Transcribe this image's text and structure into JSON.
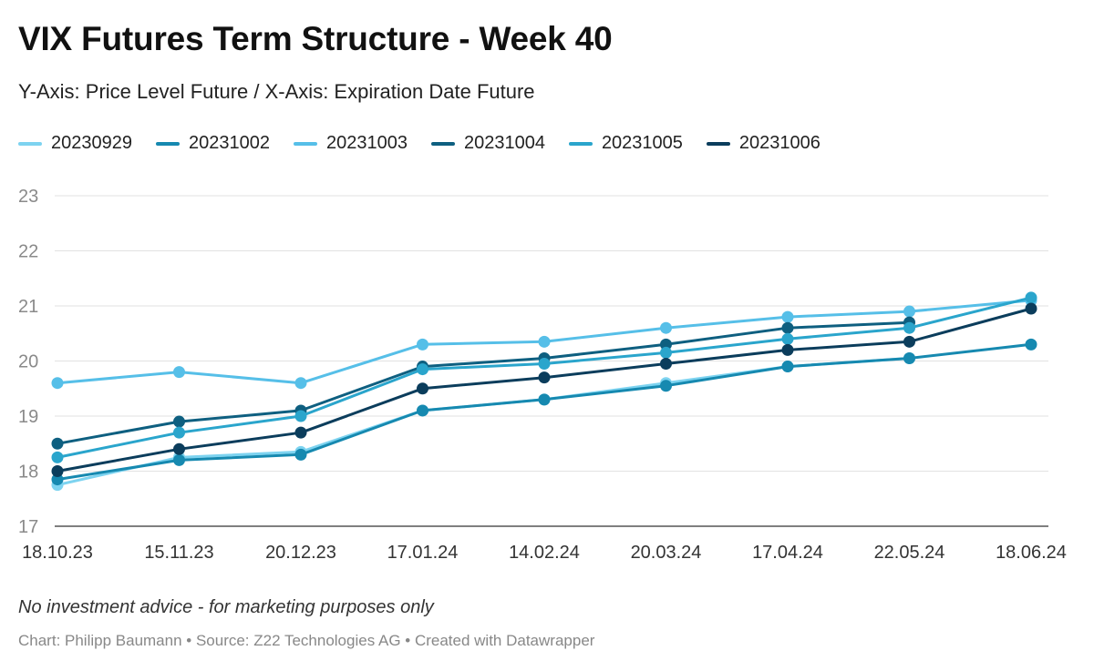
{
  "header": {
    "title": "VIX Futures Term Structure - Week 40",
    "subtitle": "Y-Axis: Price Level Future / X-Axis: Expiration Date Future"
  },
  "footer": {
    "note": "No investment advice - for marketing purposes only",
    "credit": "Chart: Philipp Baumann • Source: Z22 Technologies AG • Created with Datawrapper"
  },
  "chart_data": {
    "type": "line",
    "title": "VIX Futures Term Structure - Week 40",
    "subtitle": "Y-Axis: Price Level Future / X-Axis: Expiration Date Future",
    "xlabel": "",
    "ylabel": "",
    "categories": [
      "18.10.23",
      "15.11.23",
      "20.12.23",
      "17.01.24",
      "14.02.24",
      "20.03.24",
      "17.04.24",
      "22.05.24",
      "18.06.24"
    ],
    "ylim": [
      17,
      23
    ],
    "yticks": [
      17,
      18,
      19,
      20,
      21,
      22,
      23
    ],
    "grid": true,
    "legend_position": "top-left",
    "series": [
      {
        "name": "20230929",
        "color": "#7dd3f0",
        "values": [
          17.75,
          18.25,
          18.35,
          19.1,
          19.3,
          19.6,
          19.9,
          20.05,
          null
        ]
      },
      {
        "name": "20231002",
        "color": "#1689b0",
        "values": [
          17.85,
          18.2,
          18.3,
          19.1,
          19.3,
          19.55,
          19.9,
          20.05,
          20.3
        ]
      },
      {
        "name": "20231003",
        "color": "#56bfe8",
        "values": [
          19.6,
          19.8,
          19.6,
          20.3,
          20.35,
          20.6,
          20.8,
          20.9,
          21.1
        ]
      },
      {
        "name": "20231004",
        "color": "#0e5f80",
        "values": [
          18.5,
          18.9,
          19.1,
          19.9,
          20.05,
          20.3,
          20.6,
          20.7,
          null
        ]
      },
      {
        "name": "20231005",
        "color": "#2aa5cc",
        "values": [
          18.25,
          18.7,
          19.0,
          19.85,
          19.95,
          20.15,
          20.4,
          20.6,
          21.15
        ]
      },
      {
        "name": "20231006",
        "color": "#0b3d5c",
        "values": [
          18.0,
          18.4,
          18.7,
          19.5,
          19.7,
          19.95,
          20.2,
          20.35,
          20.95
        ]
      }
    ]
  }
}
